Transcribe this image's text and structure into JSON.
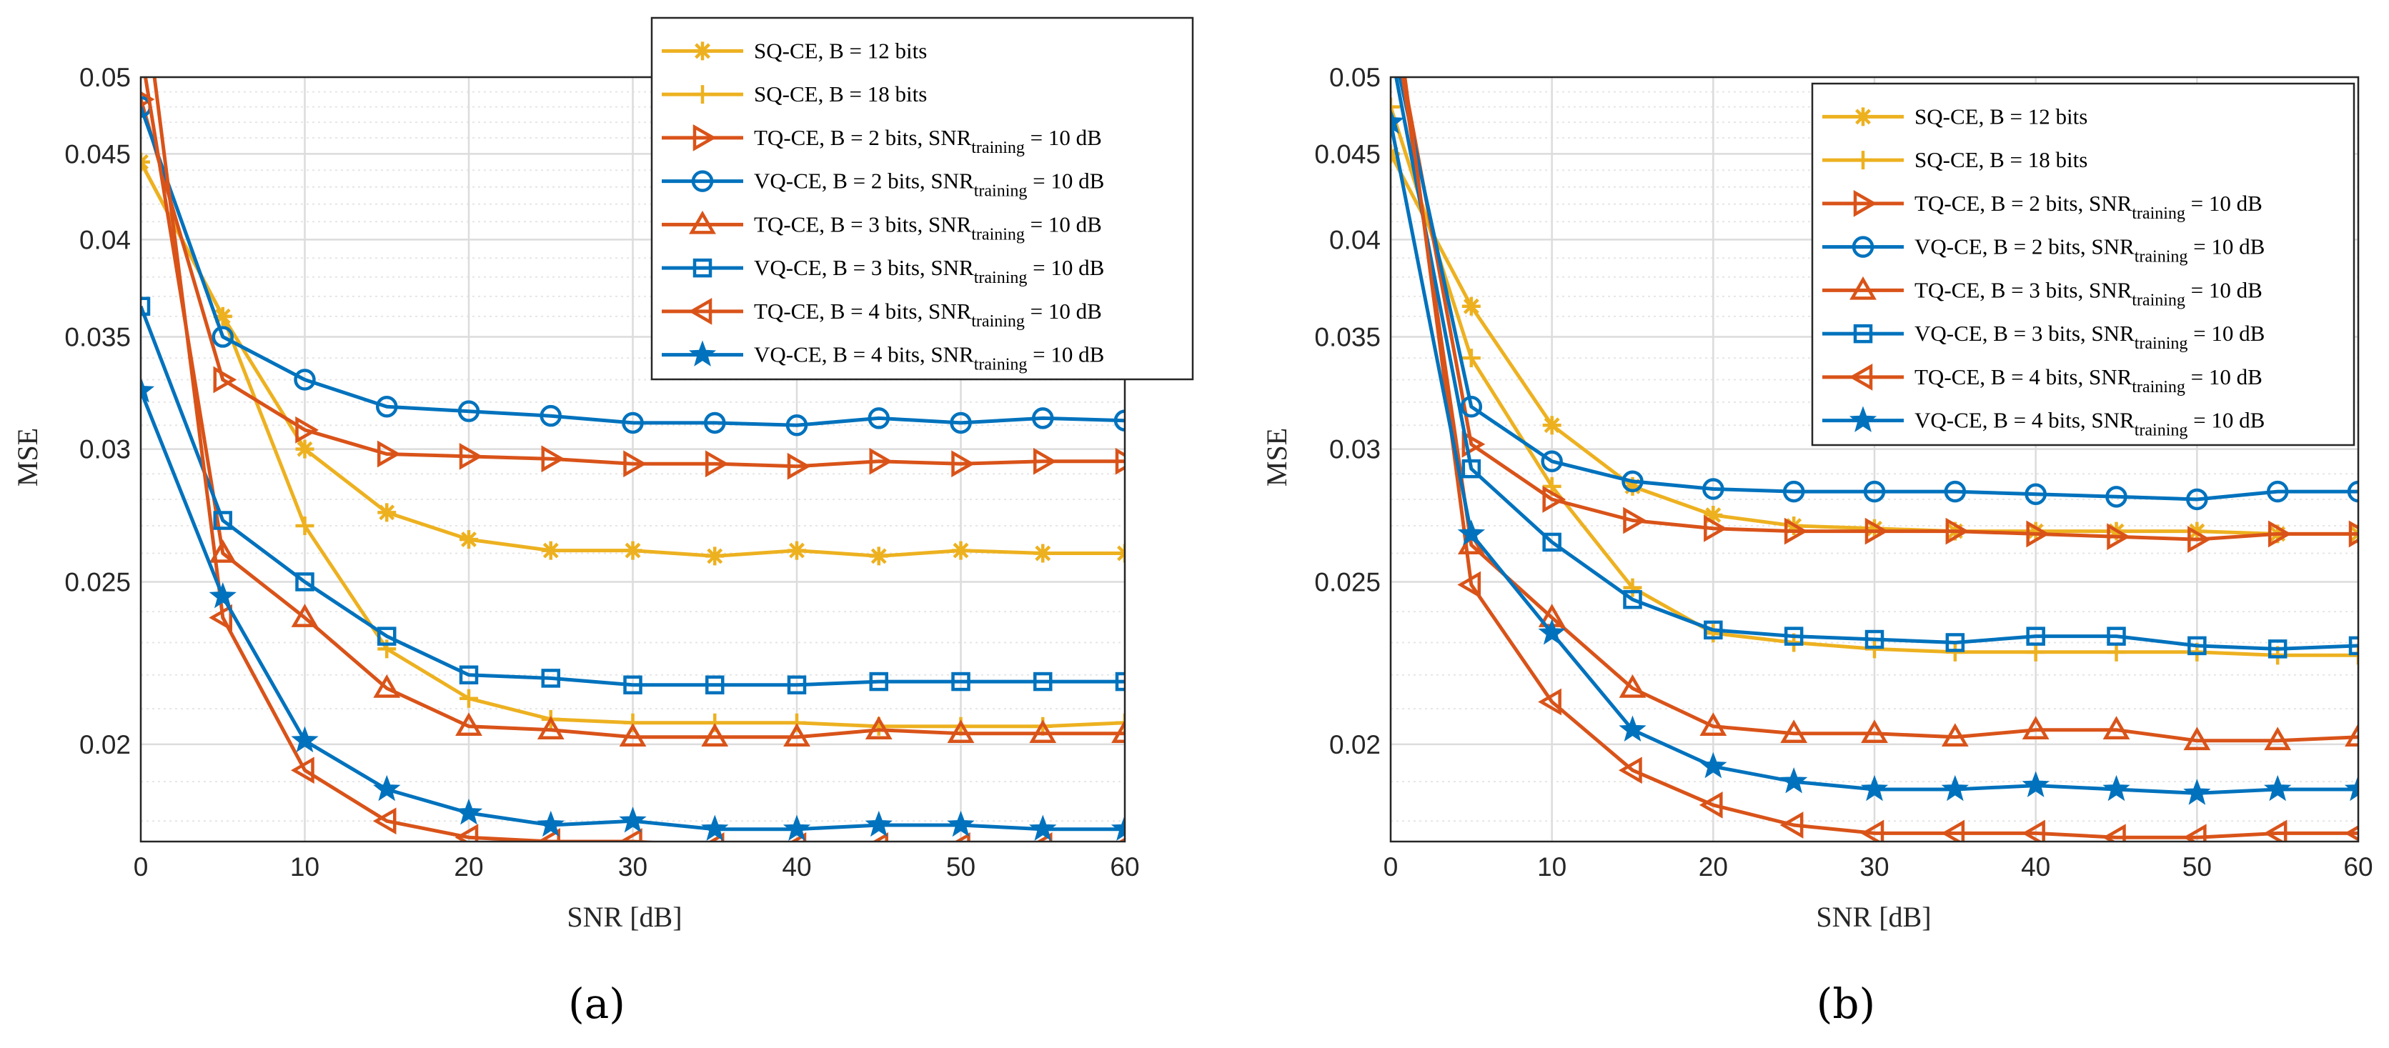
{
  "figure": {
    "panels": [
      {
        "caption": "(a)",
        "xlabel": "SNR [dB]",
        "ylabel": "MSE",
        "yticks": [
          "0.02",
          "0.025",
          "0.03",
          "0.035",
          "0.04",
          "0.045",
          "0.05"
        ],
        "xticks": [
          "0",
          "10",
          "20",
          "30",
          "40",
          "50",
          "60"
        ]
      },
      {
        "caption": "(b)",
        "xlabel": "SNR [dB]",
        "ylabel": "MSE",
        "yticks": [
          "0.02",
          "0.025",
          "0.03",
          "0.035",
          "0.04",
          "0.045",
          "0.05"
        ],
        "xticks": [
          "0",
          "10",
          "20",
          "30",
          "40",
          "50",
          "60"
        ]
      }
    ]
  },
  "colors": {
    "sq": "#EDB120",
    "tq": "#D95319",
    "vq": "#0072BD",
    "grid": "#dcdcdc",
    "axis": "#262626"
  },
  "chart_data": [
    {
      "type": "line",
      "caption": "(a)",
      "xlabel": "SNR [dB]",
      "ylabel": "MSE",
      "yscale": "log",
      "xlim": [
        0,
        60
      ],
      "ylim": [
        0.0175,
        0.05
      ],
      "grid": true,
      "legend_position": "top-right",
      "x": [
        0,
        5,
        10,
        15,
        20,
        25,
        30,
        35,
        40,
        45,
        50,
        55,
        60
      ],
      "series": [
        {
          "name": "SQ-CE, B = 12 bits",
          "group": "sq",
          "marker": "asterisk",
          "values": [
            0.0445,
            0.036,
            0.03,
            0.0275,
            0.0265,
            0.0261,
            0.0261,
            0.0259,
            0.0261,
            0.0259,
            0.0261,
            0.026,
            0.026
          ]
        },
        {
          "name": "SQ-CE, B = 18 bits",
          "group": "sq",
          "marker": "plus",
          "values": [
            0.0445,
            0.036,
            0.027,
            0.0228,
            0.0213,
            0.0207,
            0.0206,
            0.0206,
            0.0206,
            0.0205,
            0.0205,
            0.0205,
            0.0206
          ]
        },
        {
          "name": "TQ-CE, B = 2 bits, SNR",
          "sub": "training",
          "tail": " = 10 dB",
          "group": "tq",
          "marker": "triangle-right",
          "values": [
            0.0485,
            0.033,
            0.0308,
            0.0298,
            0.0297,
            0.0296,
            0.0294,
            0.0294,
            0.0293,
            0.0295,
            0.0294,
            0.0295,
            0.0295
          ]
        },
        {
          "name": "VQ-CE, B = 2 bits, SNR",
          "sub": "training",
          "tail": " = 10 dB",
          "group": "vq",
          "marker": "circle",
          "values": [
            0.048,
            0.035,
            0.033,
            0.0318,
            0.0316,
            0.0314,
            0.0311,
            0.0311,
            0.031,
            0.0313,
            0.0311,
            0.0313,
            0.0312
          ]
        },
        {
          "name": "TQ-CE, B = 3 bits, SNR",
          "sub": "training",
          "tail": " = 10 dB",
          "group": "tq",
          "marker": "triangle-up",
          "values": [
            0.052,
            0.026,
            0.0238,
            0.0216,
            0.0205,
            0.0204,
            0.0202,
            0.0202,
            0.0202,
            0.0204,
            0.0203,
            0.0203,
            0.0203
          ]
        },
        {
          "name": "VQ-CE, B = 3 bits, SNR",
          "sub": "training",
          "tail": " = 10 dB",
          "group": "vq",
          "marker": "square",
          "values": [
            0.0365,
            0.0272,
            0.025,
            0.0232,
            0.022,
            0.0219,
            0.0217,
            0.0217,
            0.0217,
            0.0218,
            0.0218,
            0.0218,
            0.0218
          ]
        },
        {
          "name": "TQ-CE, B = 4 bits, SNR",
          "sub": "training",
          "tail": " = 10 dB",
          "group": "tq",
          "marker": "triangle-left",
          "values": [
            0.058,
            0.0238,
            0.0193,
            0.018,
            0.0176,
            0.0175,
            0.0175,
            0.0174,
            0.0174,
            0.0174,
            0.0174,
            0.0174,
            0.0174
          ]
        },
        {
          "name": "VQ-CE, B = 4 bits, SNR",
          "sub": "training",
          "tail": " = 10 dB",
          "group": "vq",
          "marker": "star",
          "values": [
            0.0325,
            0.0245,
            0.0201,
            0.0188,
            0.0182,
            0.0179,
            0.018,
            0.0178,
            0.0178,
            0.0179,
            0.0179,
            0.0178,
            0.0178
          ]
        }
      ]
    },
    {
      "type": "line",
      "caption": "(b)",
      "xlabel": "SNR [dB]",
      "ylabel": "MSE",
      "yscale": "log",
      "xlim": [
        0,
        60
      ],
      "ylim": [
        0.0175,
        0.05
      ],
      "grid": true,
      "legend_position": "top-right",
      "x": [
        0,
        5,
        10,
        15,
        20,
        25,
        30,
        35,
        40,
        45,
        50,
        55,
        60
      ],
      "series": [
        {
          "name": "SQ-CE, B = 12 bits",
          "group": "sq",
          "marker": "asterisk",
          "values": [
            0.045,
            0.0365,
            0.031,
            0.0285,
            0.0274,
            0.027,
            0.0269,
            0.0268,
            0.0268,
            0.0268,
            0.0268,
            0.0267,
            0.0267
          ]
        },
        {
          "name": "SQ-CE, B = 18 bits",
          "group": "sq",
          "marker": "plus",
          "values": [
            0.048,
            0.034,
            0.0285,
            0.0248,
            0.0233,
            0.023,
            0.0228,
            0.0227,
            0.0227,
            0.0227,
            0.0227,
            0.0226,
            0.0226
          ]
        },
        {
          "name": "TQ-CE, B = 2 bits, SNR",
          "sub": "training",
          "tail": " = 10 dB",
          "group": "tq",
          "marker": "triangle-right",
          "values": [
            0.055,
            0.0302,
            0.028,
            0.0272,
            0.0269,
            0.0268,
            0.0268,
            0.0268,
            0.0267,
            0.0266,
            0.0265,
            0.0267,
            0.0267
          ]
        },
        {
          "name": "VQ-CE, B = 2 bits, SNR",
          "sub": "training",
          "tail": " = 10 dB",
          "group": "vq",
          "marker": "circle",
          "values": [
            0.053,
            0.0318,
            0.0295,
            0.0287,
            0.0284,
            0.0283,
            0.0283,
            0.0283,
            0.0282,
            0.0281,
            0.028,
            0.0283,
            0.0283
          ]
        },
        {
          "name": "TQ-CE, B = 3 bits, SNR",
          "sub": "training",
          "tail": " = 10 dB",
          "group": "tq",
          "marker": "triangle-up",
          "values": [
            0.056,
            0.0263,
            0.0238,
            0.0216,
            0.0205,
            0.0203,
            0.0203,
            0.0202,
            0.0204,
            0.0204,
            0.0201,
            0.0201,
            0.0202
          ]
        },
        {
          "name": "VQ-CE, B = 3 bits, SNR",
          "sub": "training",
          "tail": " = 10 dB",
          "group": "vq",
          "marker": "square",
          "values": [
            0.052,
            0.0292,
            0.0264,
            0.0244,
            0.0234,
            0.0232,
            0.0231,
            0.023,
            0.0232,
            0.0232,
            0.0229,
            0.0228,
            0.0229
          ]
        },
        {
          "name": "TQ-CE, B = 4 bits, SNR",
          "sub": "training",
          "tail": " = 10 dB",
          "group": "tq",
          "marker": "triangle-left",
          "values": [
            0.058,
            0.0249,
            0.0212,
            0.0193,
            0.0184,
            0.0179,
            0.0177,
            0.0177,
            0.0177,
            0.0176,
            0.0176,
            0.0177,
            0.0177
          ]
        },
        {
          "name": "VQ-CE, B = 4 bits, SNR",
          "sub": "training",
          "tail": " = 10 dB",
          "group": "vq",
          "marker": "star",
          "values": [
            0.047,
            0.0267,
            0.0233,
            0.0204,
            0.0194,
            0.019,
            0.0188,
            0.0188,
            0.0189,
            0.0188,
            0.0187,
            0.0188,
            0.0188
          ]
        }
      ]
    }
  ]
}
